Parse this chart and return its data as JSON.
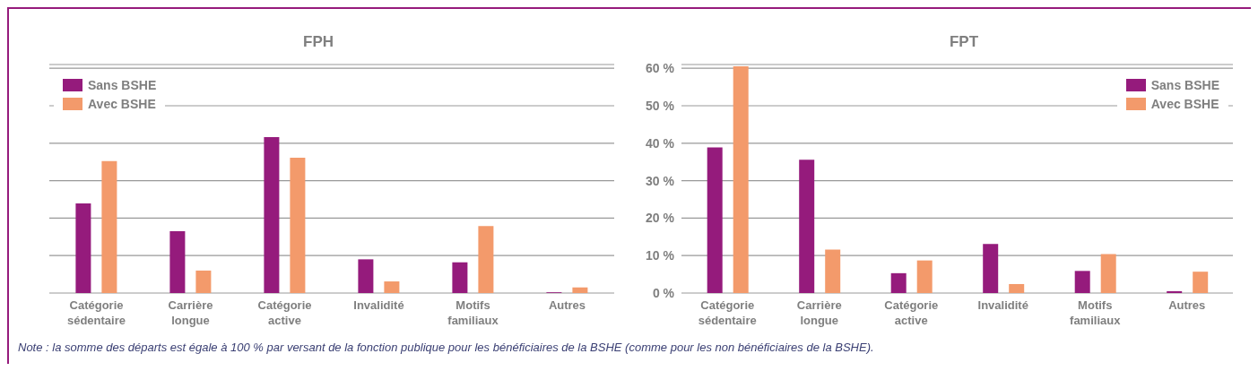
{
  "chart_data": [
    {
      "type": "bar",
      "title": "FPH",
      "categories": [
        "Catégorie sédentaire",
        "Carrière longue",
        "Catégorie active",
        "Invalidité",
        "Motifs familiaux",
        "Autres"
      ],
      "series": [
        {
          "name": "Sans BSHE",
          "color": "#951b7c",
          "values": [
            23.9,
            16.5,
            41.6,
            9.0,
            8.2,
            0.2
          ]
        },
        {
          "name": "Avec BSHE",
          "color": "#f39a6b",
          "values": [
            35.2,
            6.0,
            36.1,
            3.1,
            17.9,
            1.5
          ]
        }
      ],
      "ylim": [
        0,
        61
      ],
      "yticks": [
        0,
        10,
        20,
        30,
        40,
        50,
        60
      ],
      "tick_labels": "x",
      "grid": "y",
      "legend": "top left",
      "annotations": [
        "Note : la somme des départs est égale à 100 % par versant de la fonction publique pour les bénéficiaires de la BSHE (comme pour les non bénéficiaires de la BSHE)."
      ]
    },
    {
      "type": "bar",
      "title": "FPT",
      "categories": [
        "Catégorie sédentaire",
        "Carrière longue",
        "Catégorie active",
        "Invalidité",
        "Motifs familiaux",
        "Autres"
      ],
      "series": [
        {
          "name": "Sans BSHE",
          "color": "#951b7c",
          "values": [
            38.9,
            35.6,
            5.3,
            13.1,
            5.9,
            0.5
          ]
        },
        {
          "name": "Avec BSHE",
          "color": "#f39a6b",
          "values": [
            60.5,
            11.6,
            8.7,
            2.4,
            10.4,
            5.7
          ]
        }
      ],
      "ylim": [
        0,
        61
      ],
      "yticks": [
        {
          "value": 0,
          "label": "0 %"
        },
        {
          "value": 10,
          "label": "10 %"
        },
        {
          "value": 20,
          "label": "20 %"
        },
        {
          "value": 30,
          "label": "30 %"
        },
        {
          "value": 40,
          "label": "40 %"
        },
        {
          "value": 50,
          "label": "50 %"
        },
        {
          "value": 60,
          "label": "60 %"
        }
      ],
      "grid": "y",
      "legend": "top right"
    }
  ]
}
